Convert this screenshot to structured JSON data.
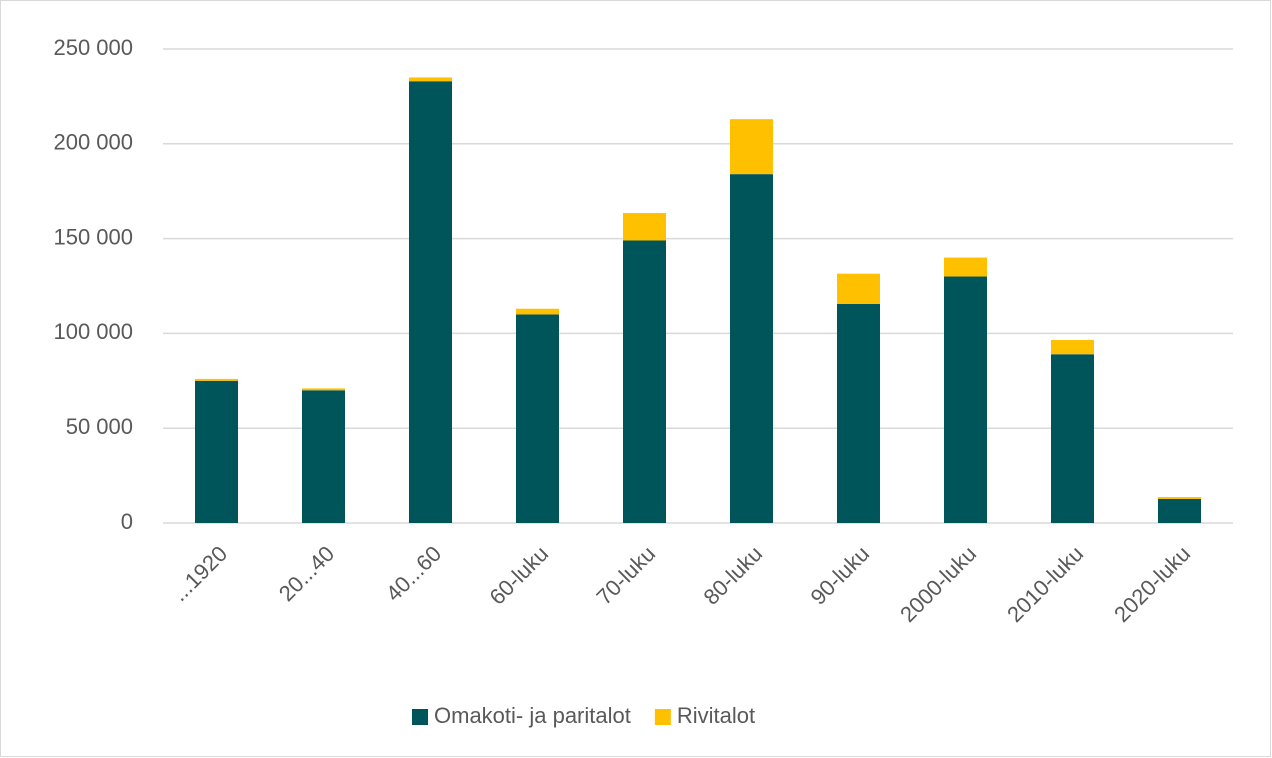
{
  "chart_data": {
    "type": "stacked_bar",
    "categories": [
      "...1920",
      "20...40",
      "40...60",
      "60-luku",
      "70-luku",
      "80-luku",
      "90-luku",
      "2000-luku",
      "2010-luku",
      "2020-luku"
    ],
    "series": [
      {
        "name": "Omakoti- ja paritalot",
        "color": "#00555a",
        "values": [
          75000,
          70000,
          233000,
          110000,
          149000,
          184000,
          115500,
          130000,
          89000,
          12700
        ]
      },
      {
        "name": "Rivitalot",
        "color": "#ffc000",
        "values": [
          1000,
          1000,
          2000,
          3000,
          14500,
          29000,
          16000,
          10000,
          7500,
          1000
        ]
      }
    ],
    "ylim": [
      0,
      250000
    ],
    "yticks": [
      0,
      {
        "value": 50000,
        "label": "50 000"
      },
      {
        "value": 100000,
        "label": "100 000"
      },
      {
        "value": 150000,
        "label": "150 000"
      },
      {
        "value": 200000,
        "label": "200 000"
      },
      {
        "value": 250000,
        "label": "250 000"
      }
    ],
    "grid": true,
    "legend": "bottom"
  }
}
